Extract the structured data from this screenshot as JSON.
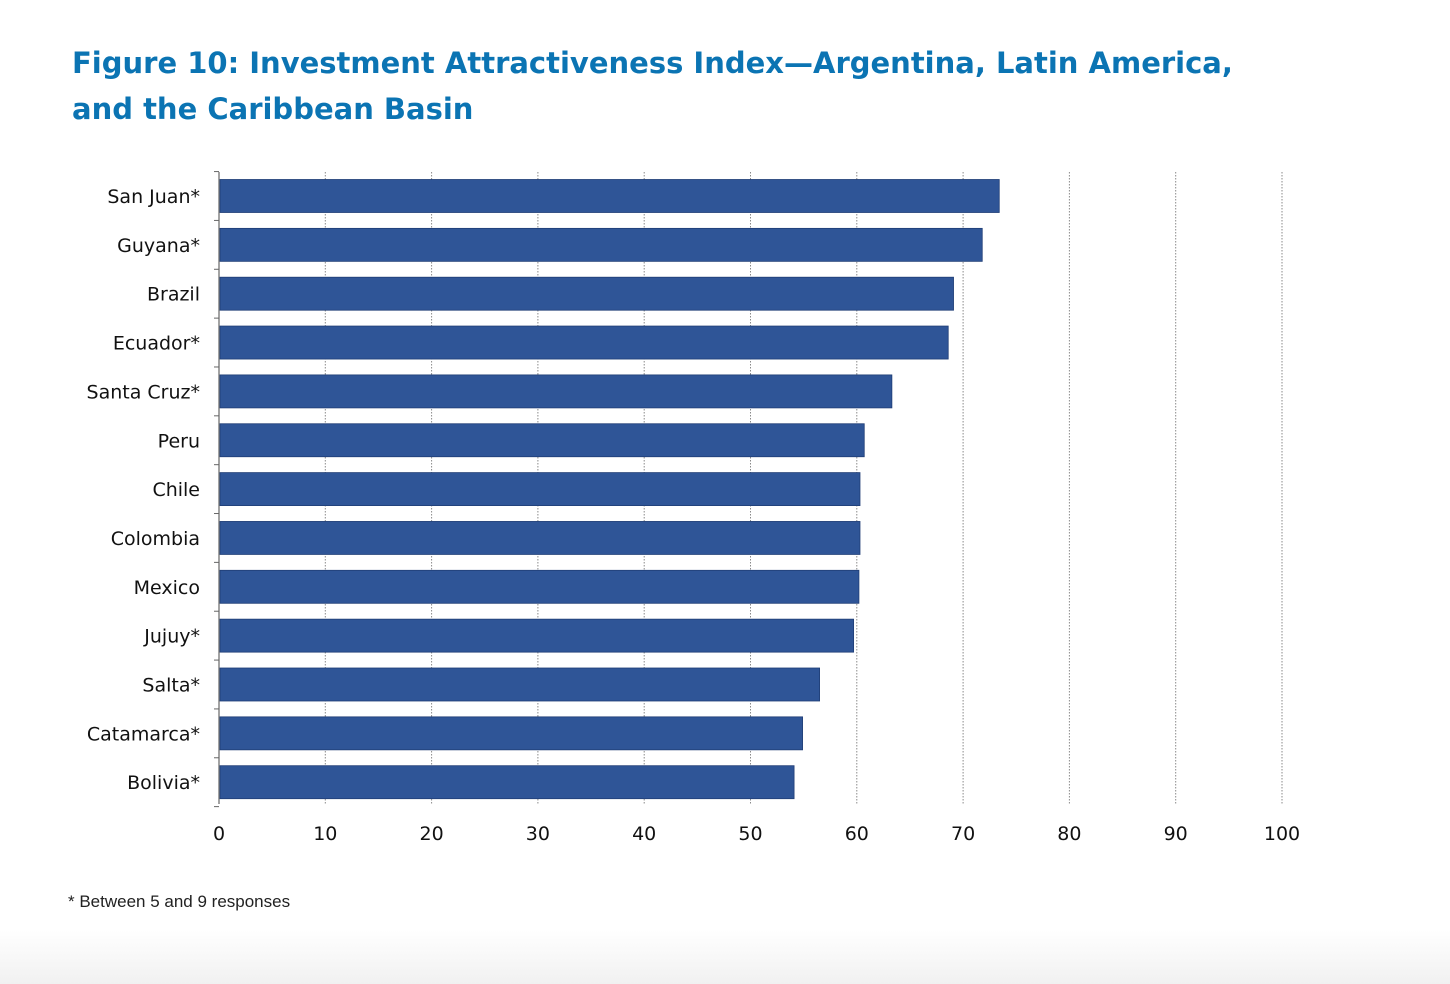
{
  "figure": {
    "title": "Figure 10: Investment Attractiveness Index—Argentina, Latin America, and the Caribbean Basin",
    "footnote": "* Between 5 and 9 responses"
  },
  "chart_data": {
    "type": "bar",
    "orientation": "horizontal",
    "title": "Figure 10: Investment Attractiveness Index—Argentina, Latin America, and the Caribbean Basin",
    "xlabel": "",
    "ylabel": "",
    "categories": [
      "San Juan*",
      "Guyana*",
      "Brazil",
      "Ecuador*",
      "Santa Cruz*",
      "Peru",
      "Chile",
      "Colombia",
      "Mexico",
      "Jujuy*",
      "Salta*",
      "Catamarca*",
      "Bolivia*"
    ],
    "values": [
      73.4,
      71.8,
      69.1,
      68.6,
      63.3,
      60.7,
      60.3,
      60.3,
      60.2,
      59.7,
      56.5,
      54.9,
      54.1
    ],
    "xlim": [
      0,
      100
    ],
    "xticks": [
      "0",
      "10",
      "20",
      "30",
      "40",
      "50",
      "60",
      "70",
      "80",
      "90",
      "100"
    ],
    "grid": true,
    "legend": "none",
    "colors": {
      "bar": "#2f5597",
      "bar_edge": "#1f3d75",
      "grid": "#8a8a8a",
      "title": "#0b74b3"
    }
  }
}
